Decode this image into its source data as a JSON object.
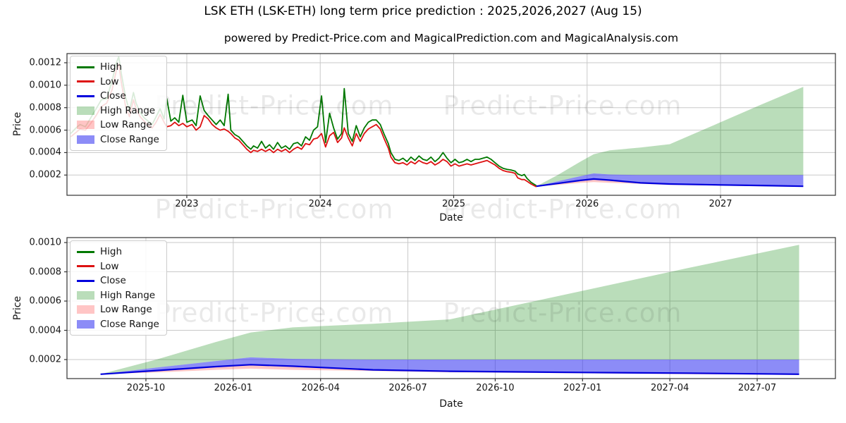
{
  "header": {
    "title": "LSK ETH (LSK-ETH) long term price prediction : 2025,2026,2027 (Aug 15)",
    "subtitle": "powered by Predict-Price.com and MagicalPrediction.com and MagicalAnalysis.com"
  },
  "watermark": {
    "text": "Predict-Price.com"
  },
  "legend": [
    {
      "label": "High",
      "type": "line",
      "color": "#007800"
    },
    {
      "label": "Low",
      "type": "line",
      "color": "#dd1111"
    },
    {
      "label": "Close",
      "type": "line",
      "color": "#0000dd"
    },
    {
      "label": "High Range",
      "type": "patch",
      "color": "rgba(0,128,0,0.27)"
    },
    {
      "label": "Low Range",
      "type": "patch",
      "color": "rgba(255,40,40,0.27)"
    },
    {
      "label": "Close Range",
      "type": "patch",
      "color": "rgba(45,45,240,0.55)"
    }
  ],
  "colors": {
    "high_line": "#007800",
    "low_line": "#dd1111",
    "close_line": "#0000dd",
    "high_range_fill": "rgba(0,128,0,0.27)",
    "low_range_fill": "rgba(255,40,40,0.27)",
    "close_range_fill": "rgba(45,45,240,0.55)",
    "grid": "#c9c9c9",
    "spine": "#333333"
  },
  "chart_data": [
    {
      "type": "line",
      "title": "",
      "xlabel": "Date",
      "ylabel": "Price",
      "grid": true,
      "legend_position": "upper left",
      "value_unit": 0.0001,
      "x_range": [
        2022.102,
        2027.861
      ],
      "y_range": [
        0.198,
        12.816
      ],
      "x_ticks": [
        {
          "v": 2023,
          "label": "2023"
        },
        {
          "v": 2024,
          "label": "2024"
        },
        {
          "v": 2025,
          "label": "2025"
        },
        {
          "v": 2026,
          "label": "2026"
        },
        {
          "v": 2027,
          "label": "2027"
        }
      ],
      "y_ticks": [
        {
          "v": 2,
          "label": "0.0002"
        },
        {
          "v": 4,
          "label": "0.0004"
        },
        {
          "v": 6,
          "label": "0.0006"
        },
        {
          "v": 8,
          "label": "0.0008"
        },
        {
          "v": 10,
          "label": "0.0010"
        },
        {
          "v": 12,
          "label": "0.0012"
        }
      ],
      "history_series_note": "triplets [year, low, high] in units of 0.0001",
      "history": [
        [
          2022.13,
          5.4,
          5.7
        ],
        [
          2022.17,
          5.8,
          6.2
        ],
        [
          2022.2,
          6.1,
          6.5
        ],
        [
          2022.24,
          6.0,
          6.3
        ],
        [
          2022.28,
          6.6,
          7.1
        ],
        [
          2022.32,
          7.3,
          7.9
        ],
        [
          2022.36,
          8.1,
          8.7
        ],
        [
          2022.4,
          8.4,
          8.8
        ],
        [
          2022.44,
          9.6,
          10.4
        ],
        [
          2022.47,
          11.2,
          11.9
        ],
        [
          2022.49,
          11.9,
          12.55
        ],
        [
          2022.51,
          10.2,
          11.0
        ],
        [
          2022.54,
          8.2,
          9.0
        ],
        [
          2022.57,
          7.2,
          7.7
        ],
        [
          2022.6,
          8.7,
          9.35
        ],
        [
          2022.62,
          7.9,
          8.4
        ],
        [
          2022.65,
          7.2,
          7.6
        ],
        [
          2022.68,
          6.8,
          7.1
        ],
        [
          2022.71,
          6.4,
          6.8
        ],
        [
          2022.74,
          6.2,
          6.5
        ],
        [
          2022.77,
          6.7,
          7.2
        ],
        [
          2022.8,
          7.4,
          7.9
        ],
        [
          2022.83,
          6.7,
          7.0
        ],
        [
          2022.85,
          6.3,
          8.8
        ],
        [
          2022.88,
          6.4,
          6.8
        ],
        [
          2022.91,
          6.7,
          7.1
        ],
        [
          2022.94,
          6.4,
          6.7
        ],
        [
          2022.97,
          6.6,
          9.1
        ],
        [
          2023.0,
          6.3,
          6.7
        ],
        [
          2023.04,
          6.5,
          6.9
        ],
        [
          2023.07,
          6.0,
          6.4
        ],
        [
          2023.1,
          6.3,
          9.05
        ],
        [
          2023.13,
          7.3,
          7.75
        ],
        [
          2023.16,
          7.0,
          7.3
        ],
        [
          2023.19,
          6.5,
          6.9
        ],
        [
          2023.22,
          6.2,
          6.5
        ],
        [
          2023.25,
          6.0,
          6.9
        ],
        [
          2023.28,
          6.1,
          6.4
        ],
        [
          2023.31,
          5.9,
          9.2
        ],
        [
          2023.33,
          5.7,
          6.0
        ],
        [
          2023.36,
          5.3,
          5.6
        ],
        [
          2023.39,
          5.1,
          5.4
        ],
        [
          2023.42,
          4.7,
          5.0
        ],
        [
          2023.45,
          4.3,
          4.6
        ],
        [
          2023.48,
          4.0,
          4.3
        ],
        [
          2023.5,
          4.2,
          4.6
        ],
        [
          2023.53,
          4.1,
          4.4
        ],
        [
          2023.56,
          4.3,
          5.0
        ],
        [
          2023.59,
          4.1,
          4.4
        ],
        [
          2023.62,
          4.3,
          4.7
        ],
        [
          2023.65,
          4.0,
          4.3
        ],
        [
          2023.68,
          4.3,
          4.9
        ],
        [
          2023.71,
          4.1,
          4.4
        ],
        [
          2023.74,
          4.3,
          4.6
        ],
        [
          2023.77,
          4.0,
          4.3
        ],
        [
          2023.8,
          4.3,
          4.8
        ],
        [
          2023.83,
          4.5,
          4.9
        ],
        [
          2023.86,
          4.3,
          4.6
        ],
        [
          2023.89,
          4.8,
          5.4
        ],
        [
          2023.92,
          4.7,
          5.1
        ],
        [
          2023.95,
          5.2,
          6.0
        ],
        [
          2023.98,
          5.3,
          6.3
        ],
        [
          2024.01,
          5.7,
          9.05
        ],
        [
          2024.04,
          4.5,
          4.9
        ],
        [
          2024.07,
          5.5,
          7.5
        ],
        [
          2024.1,
          5.8,
          6.2
        ],
        [
          2024.13,
          4.9,
          5.2
        ],
        [
          2024.16,
          5.3,
          5.7
        ],
        [
          2024.18,
          6.2,
          9.7
        ],
        [
          2024.21,
          5.3,
          5.7
        ],
        [
          2024.24,
          4.6,
          5.0
        ],
        [
          2024.27,
          5.7,
          6.4
        ],
        [
          2024.3,
          5.0,
          5.4
        ],
        [
          2024.33,
          5.7,
          6.2
        ],
        [
          2024.36,
          6.1,
          6.7
        ],
        [
          2024.39,
          6.3,
          6.9
        ],
        [
          2024.42,
          6.5,
          6.9
        ],
        [
          2024.45,
          6.1,
          6.5
        ],
        [
          2024.48,
          5.2,
          5.6
        ],
        [
          2024.51,
          4.4,
          4.8
        ],
        [
          2024.53,
          3.6,
          4.0
        ],
        [
          2024.56,
          3.1,
          3.4
        ],
        [
          2024.59,
          3.0,
          3.3
        ],
        [
          2024.62,
          3.1,
          3.5
        ],
        [
          2024.65,
          2.9,
          3.2
        ],
        [
          2024.68,
          3.2,
          3.6
        ],
        [
          2024.71,
          3.0,
          3.3
        ],
        [
          2024.74,
          3.3,
          3.7
        ],
        [
          2024.77,
          3.1,
          3.4
        ],
        [
          2024.8,
          3.0,
          3.3
        ],
        [
          2024.83,
          3.2,
          3.6
        ],
        [
          2024.86,
          2.9,
          3.2
        ],
        [
          2024.89,
          3.1,
          3.5
        ],
        [
          2024.92,
          3.4,
          4.0
        ],
        [
          2024.95,
          3.2,
          3.5
        ],
        [
          2024.98,
          2.8,
          3.1
        ],
        [
          2025.01,
          3.0,
          3.4
        ],
        [
          2025.04,
          2.8,
          3.1
        ],
        [
          2025.07,
          2.9,
          3.2
        ],
        [
          2025.1,
          3.0,
          3.4
        ],
        [
          2025.13,
          2.9,
          3.2
        ],
        [
          2025.16,
          3.0,
          3.4
        ],
        [
          2025.19,
          3.1,
          3.4
        ],
        [
          2025.22,
          3.2,
          3.5
        ],
        [
          2025.25,
          3.3,
          3.6
        ],
        [
          2025.28,
          3.1,
          3.4
        ],
        [
          2025.31,
          2.9,
          3.1
        ],
        [
          2025.34,
          2.6,
          2.8
        ],
        [
          2025.37,
          2.4,
          2.6
        ],
        [
          2025.4,
          2.3,
          2.5
        ],
        [
          2025.43,
          2.25,
          2.45
        ],
        [
          2025.46,
          2.15,
          2.35
        ],
        [
          2025.48,
          1.75,
          2.1
        ],
        [
          2025.51,
          1.6,
          1.95
        ],
        [
          2025.53,
          1.6,
          2.05
        ],
        [
          2025.55,
          1.45,
          1.7
        ],
        [
          2025.58,
          1.2,
          1.35
        ],
        [
          2025.62,
          0.95,
          1.05
        ]
      ],
      "prediction_series_note": "rows [year, close, close_range_top, low_range_bottom, high_range_top] in units of 0.0001",
      "prediction": [
        [
          2025.62,
          1.0,
          1.0,
          1.0,
          1.0
        ],
        [
          2025.78,
          1.25,
          1.45,
          1.12,
          2.0
        ],
        [
          2025.95,
          1.52,
          1.9,
          1.3,
          3.2
        ],
        [
          2026.05,
          1.65,
          2.15,
          1.38,
          3.85
        ],
        [
          2026.17,
          1.55,
          2.05,
          1.3,
          4.2
        ],
        [
          2026.4,
          1.3,
          2.0,
          1.22,
          4.45
        ],
        [
          2026.62,
          1.2,
          2.0,
          1.13,
          4.75
        ],
        [
          2027.0,
          1.12,
          2.0,
          1.06,
          6.7
        ],
        [
          2027.3,
          1.07,
          2.0,
          1.0,
          8.25
        ],
        [
          2027.62,
          1.0,
          2.0,
          0.95,
          9.85
        ]
      ]
    },
    {
      "type": "line",
      "title": "",
      "xlabel": "Date",
      "ylabel": "Price",
      "grid": true,
      "legend_position": "upper left",
      "value_unit": 0.0001,
      "x_range": [
        2025.524,
        2027.724
      ],
      "y_range": [
        0.7,
        10.34
      ],
      "x_ticks": [
        {
          "v": 2025.75,
          "label": "2025-10"
        },
        {
          "v": 2026.0,
          "label": "2026-01"
        },
        {
          "v": 2026.25,
          "label": "2026-04"
        },
        {
          "v": 2026.5,
          "label": "2026-07"
        },
        {
          "v": 2026.75,
          "label": "2026-10"
        },
        {
          "v": 2027.0,
          "label": "2027-01"
        },
        {
          "v": 2027.25,
          "label": "2027-04"
        },
        {
          "v": 2027.5,
          "label": "2027-07"
        }
      ],
      "y_ticks": [
        {
          "v": 2,
          "label": "0.0002"
        },
        {
          "v": 4,
          "label": "0.0004"
        },
        {
          "v": 6,
          "label": "0.0006"
        },
        {
          "v": 8,
          "label": "0.0008"
        },
        {
          "v": 10,
          "label": "0.0010"
        }
      ],
      "history": [],
      "prediction": [
        [
          2025.62,
          1.0,
          1.0,
          1.0,
          1.0
        ],
        [
          2025.78,
          1.25,
          1.45,
          1.12,
          2.0
        ],
        [
          2025.95,
          1.52,
          1.9,
          1.3,
          3.2
        ],
        [
          2026.05,
          1.65,
          2.15,
          1.38,
          3.85
        ],
        [
          2026.17,
          1.55,
          2.05,
          1.3,
          4.2
        ],
        [
          2026.4,
          1.3,
          2.0,
          1.22,
          4.45
        ],
        [
          2026.62,
          1.2,
          2.0,
          1.13,
          4.75
        ],
        [
          2027.0,
          1.12,
          2.0,
          1.06,
          6.7
        ],
        [
          2027.3,
          1.07,
          2.0,
          1.0,
          8.25
        ],
        [
          2027.62,
          1.0,
          2.0,
          0.95,
          9.85
        ]
      ]
    }
  ]
}
